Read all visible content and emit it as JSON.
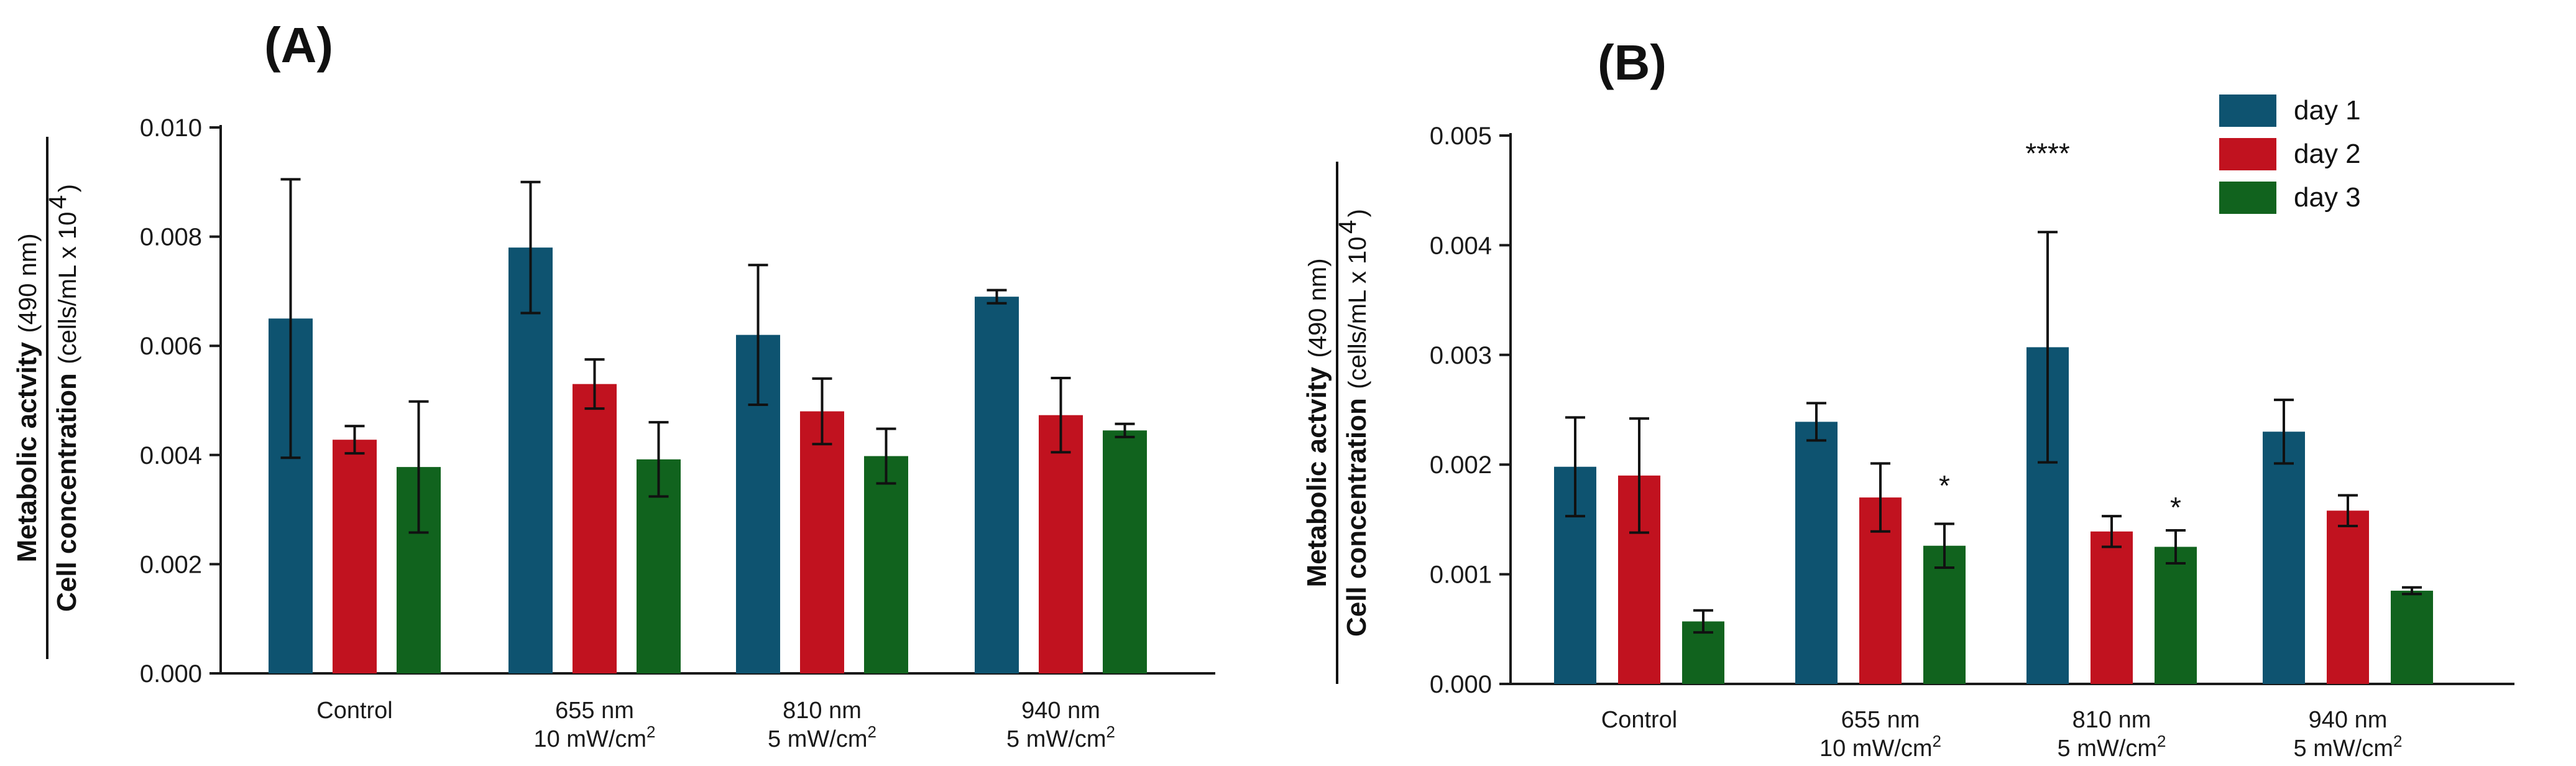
{
  "chart_data": [
    {
      "type": "bar",
      "panel_label": "(A)",
      "ylabel_numerator": {
        "bold": "Metabolic actvity",
        "regular": "(490 nm)"
      },
      "ylabel_denominator": {
        "bold": "Cell concentration",
        "regular": "(cells/mL x 10",
        "sup": "4",
        "close": ")"
      },
      "categories": [
        {
          "line1": "Control",
          "line2": "",
          "sup": ""
        },
        {
          "line1": "655 nm",
          "line2": "10 mW/cm",
          "sup": "2"
        },
        {
          "line1": "810 nm",
          "line2": "5 mW/cm",
          "sup": "2"
        },
        {
          "line1": "940 nm",
          "line2": "5 mW/cm",
          "sup": "2"
        }
      ],
      "ylim": [
        0,
        0.01
      ],
      "yticks": [
        "0.000",
        "0.002",
        "0.004",
        "0.006",
        "0.008",
        "0.010"
      ],
      "series": [
        {
          "name": "day 1",
          "color": "#0e5370",
          "values": [
            0.0065,
            0.0078,
            0.0062,
            0.0069
          ],
          "err": [
            0.00255,
            0.0012,
            0.00128,
            0.00012
          ]
        },
        {
          "name": "day 2",
          "color": "#c1121f",
          "values": [
            0.00428,
            0.0053,
            0.0048,
            0.00473
          ],
          "err": [
            0.00025,
            0.00045,
            0.0006,
            0.00068
          ]
        },
        {
          "name": "day 3",
          "color": "#11631e",
          "values": [
            0.00378,
            0.00392,
            0.00398,
            0.00445
          ],
          "err": [
            0.0012,
            0.00068,
            0.0005,
            0.00012
          ]
        }
      ],
      "significance": [],
      "legend": false
    },
    {
      "type": "bar",
      "panel_label": "(B)",
      "ylabel_numerator": {
        "bold": "Metabolic actvity",
        "regular": "(490 nm)"
      },
      "ylabel_denominator": {
        "bold": "Cell concentration",
        "regular": "(cells/mL x 10",
        "sup": "4",
        "close": ")"
      },
      "categories": [
        {
          "line1": "Control",
          "line2": "",
          "sup": ""
        },
        {
          "line1": "655 nm",
          "line2": "10 mW/cm",
          "sup": "2"
        },
        {
          "line1": "810 nm",
          "line2": "5 mW/cm",
          "sup": "2"
        },
        {
          "line1": "940 nm",
          "line2": "5 mW/cm",
          "sup": "2"
        }
      ],
      "ylim": [
        0,
        0.005
      ],
      "yticks": [
        "0.000",
        "0.001",
        "0.002",
        "0.003",
        "0.004",
        "0.005"
      ],
      "series": [
        {
          "name": "day 1",
          "color": "#0e5370",
          "values": [
            0.00198,
            0.00239,
            0.00307,
            0.0023
          ],
          "err": [
            0.00045,
            0.00017,
            0.00105,
            0.00029
          ]
        },
        {
          "name": "day 2",
          "color": "#c1121f",
          "values": [
            0.0019,
            0.0017,
            0.00139,
            0.00158
          ],
          "err": [
            0.00052,
            0.00031,
            0.00014,
            0.00014
          ]
        },
        {
          "name": "day 3",
          "color": "#11631e",
          "values": [
            0.00057,
            0.00126,
            0.00125,
            0.00085
          ],
          "err": [
            0.0001,
            0.0002,
            0.00015,
            3e-05
          ]
        }
      ],
      "significance": [
        {
          "text": "****",
          "category": 2,
          "series": 0,
          "y": 0.00485
        },
        {
          "text": "*",
          "category": 1,
          "series": 2,
          "y": 0.00182
        },
        {
          "text": "*",
          "category": 2,
          "series": 2,
          "y": 0.00162
        }
      ],
      "legend": true,
      "legend_position": "top-right"
    }
  ]
}
